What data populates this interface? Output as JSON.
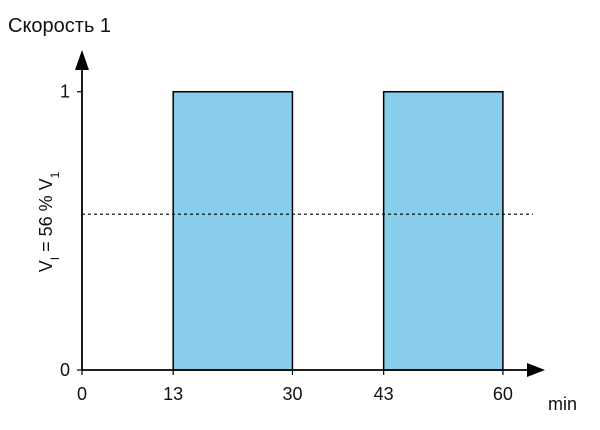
{
  "chart_data": {
    "type": "pulse",
    "title": "Скорость 1",
    "y_label": [
      {
        "text": "V"
      },
      {
        "text": "I",
        "sub": true
      },
      {
        "text": " = 56 % V"
      },
      {
        "text": "1",
        "sub": true
      }
    ],
    "x_unit": "min",
    "pulses": [
      {
        "start": 13,
        "end": 30,
        "value": 1
      },
      {
        "start": 43,
        "end": 60,
        "value": 1
      }
    ],
    "threshold": 0.56,
    "color": "#88cdea",
    "xlim": [
      0,
      66
    ],
    "ylim": [
      0,
      1.15
    ],
    "xticks": [
      0,
      13,
      30,
      43,
      60
    ],
    "yticks": [
      0,
      1
    ]
  }
}
